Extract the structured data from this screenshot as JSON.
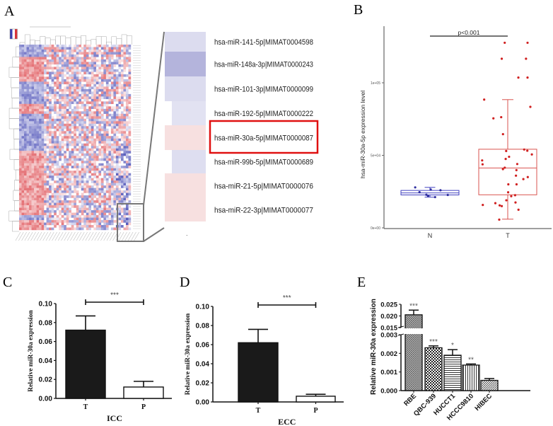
{
  "panel_labels": {
    "a": "A",
    "b": "B",
    "c": "C",
    "d": "D",
    "e": "E"
  },
  "colors": {
    "up": "#d9343a",
    "down": "#3a3fb0",
    "box_n": "#4040c0",
    "box_t": "#d9534f",
    "bar_dark": "#1a1a1a",
    "highlight": "#e01010"
  },
  "chart_data": [
    {
      "panel": "A",
      "type": "heatmap",
      "color_scale": [
        "blue",
        "white",
        "red"
      ],
      "zoomed_rows": [
        {
          "label": "hsa-miR-141-5p|MIMAT0004598",
          "color": "#dcdcef"
        },
        {
          "label": "hsa-miR-148a-3p|MIMAT0000243",
          "color": "#b4b4dc"
        },
        {
          "label": "hsa-miR-101-3p|MIMAT0000099",
          "color": "#dcdcef"
        },
        {
          "label": "hsa-miR-192-5p|MIMAT0000222",
          "color": "#e2e2f2"
        },
        {
          "label": "hsa-miR-30a-5p|MIMAT0000087",
          "color": "#f7e0e0",
          "highlighted": true
        },
        {
          "label": "hsa-miR-99b-5p|MIMAT0000689",
          "color": "#dedef0"
        },
        {
          "label": "hsa-miR-21-5p|MIMAT0000076",
          "color": "#f7e0e0"
        },
        {
          "label": "hsa-miR-22-3p|MIMAT0000077",
          "color": "#f7e0e0"
        }
      ],
      "footnote": "."
    },
    {
      "panel": "B",
      "type": "box",
      "ylabel": "hsa-miR-30a-5p expression level",
      "categories": [
        "N",
        "T"
      ],
      "yticks": [
        {
          "v": 0,
          "label": "0e+00"
        },
        {
          "v": 50000,
          "label": "5e+04"
        },
        {
          "v": 100000,
          "label": "1e+05"
        }
      ],
      "ylim": [
        0,
        135000
      ],
      "significance": "p<0.001",
      "boxes": [
        {
          "name": "N",
          "min": 21200,
          "q1": 22700,
          "median": 24100,
          "q3": 25800,
          "max": 27900,
          "points": [
            27900,
            25900,
            26400,
            24600,
            21200,
            22000,
            22700,
            22800
          ]
        },
        {
          "name": "T",
          "min": 6000,
          "q1": 22800,
          "median": 41300,
          "q3": 54200,
          "max": 88400,
          "points": [
            127600,
            127600,
            116600,
            116600,
            103600,
            103600,
            88400,
            83400,
            76300,
            75500,
            64600,
            53000,
            54000,
            53200,
            50600,
            49000,
            47500,
            46500,
            44000,
            43800,
            40500,
            39800,
            41500,
            36000,
            35000,
            33600,
            30000,
            30000,
            24500,
            22500,
            21800,
            17000,
            15000,
            19000,
            17500,
            15500,
            15800,
            12500,
            5700
          ]
        }
      ]
    },
    {
      "panel": "C",
      "type": "bar",
      "xlabel": "ICC",
      "ylabel": "Relative miR-30a expression",
      "categories": [
        "T",
        "P"
      ],
      "values": [
        0.072,
        0.012
      ],
      "errors": [
        0.015,
        0.006
      ],
      "fills": [
        "dark",
        "white"
      ],
      "ylim": [
        0,
        0.1
      ],
      "yticks": [
        "0.00",
        "0.02",
        "0.04",
        "0.06",
        "0.08",
        "0.10"
      ],
      "significance": "***"
    },
    {
      "panel": "D",
      "type": "bar",
      "xlabel": "ECC",
      "ylabel": "Relative miR-30a expression",
      "categories": [
        "T",
        "P"
      ],
      "values": [
        0.062,
        0.006
      ],
      "errors": [
        0.014,
        0.002
      ],
      "fills": [
        "dark",
        "white"
      ],
      "ylim": [
        0,
        0.1
      ],
      "yticks": [
        "0.00",
        "0.02",
        "0.04",
        "0.06",
        "0.08",
        "0.10"
      ],
      "significance": "***"
    },
    {
      "panel": "E",
      "type": "bar",
      "ylabel": "Relative miR-30a expression",
      "axis_break": [
        0.003,
        0.015
      ],
      "ylim": [
        0,
        0.025
      ],
      "yticks_lower": [
        "0.000",
        "0.001",
        "0.002",
        "0.003"
      ],
      "yticks_upper": [
        "0.015",
        "0.020",
        "0.025"
      ],
      "categories": [
        "RBE",
        "QBC-939",
        "HUCCT1",
        "HCCC9810",
        "HIBEC"
      ],
      "values": [
        0.0205,
        0.0023,
        0.0019,
        0.00137,
        0.00055
      ],
      "errors": [
        0.002,
        0.0001,
        0.0003,
        6e-05,
        0.0001
      ],
      "patterns": [
        "crosshatch",
        "checker",
        "horizontal",
        "vertical",
        "diagonal"
      ],
      "significance": [
        "***",
        "***",
        "*",
        "**",
        ""
      ]
    }
  ]
}
